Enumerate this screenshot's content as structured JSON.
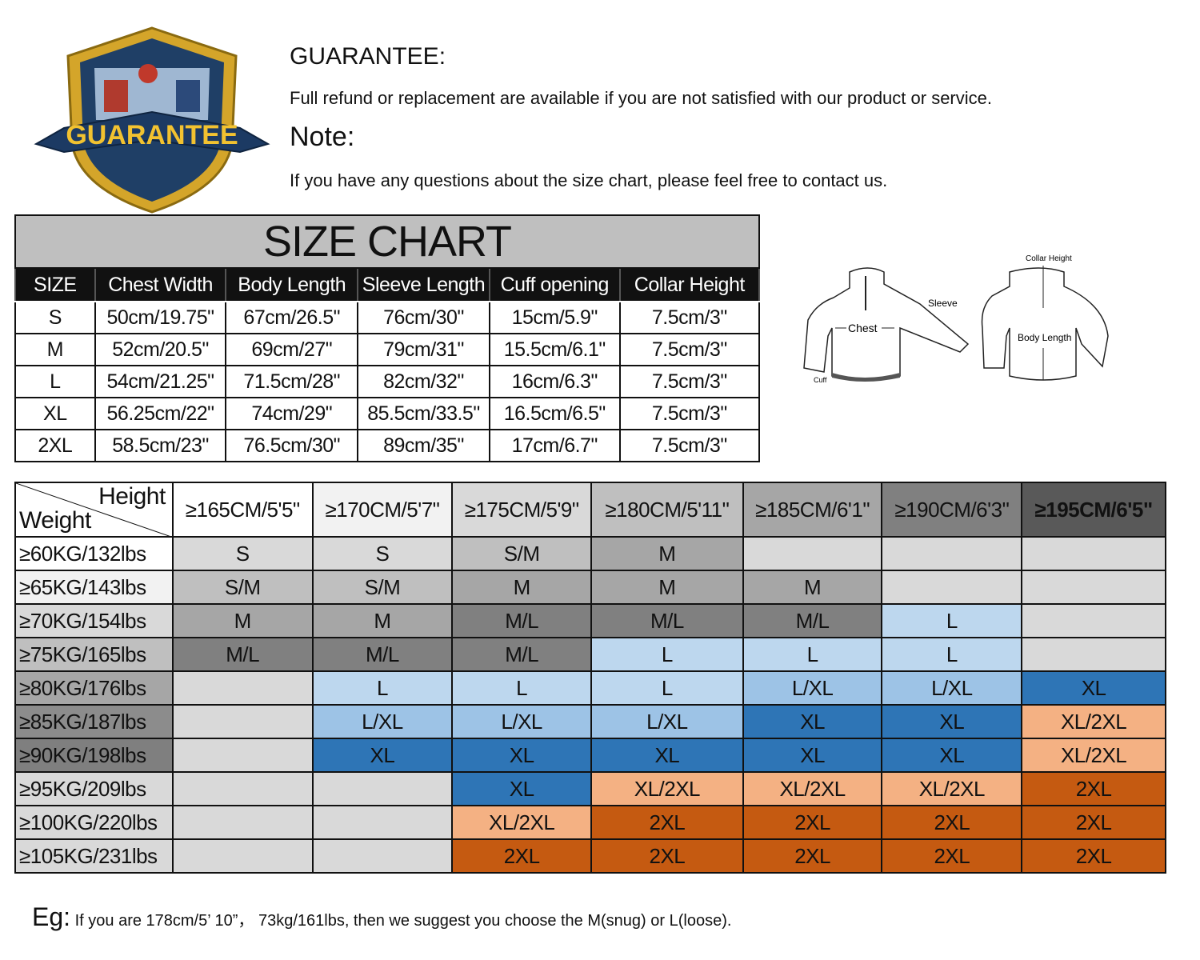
{
  "logo": {
    "text": "GUARANTEE"
  },
  "guarantee": {
    "title": "GUARANTEE:",
    "text": "Full refund or replacement are available if you are not satisfied with our product or service."
  },
  "note": {
    "title": "Note:",
    "text": "If you have any questions about the size chart, please feel free to contact us."
  },
  "size_chart": {
    "title": "SIZE CHART",
    "headers": [
      "SIZE",
      "Chest Width",
      "Body Length",
      "Sleeve Length",
      "Cuff opening",
      "Collar Height"
    ],
    "rows": [
      [
        "S",
        "50cm/19.75\"",
        "67cm/26.5\"",
        "76cm/30\"",
        "15cm/5.9\"",
        "7.5cm/3\""
      ],
      [
        "M",
        "52cm/20.5\"",
        "69cm/27\"",
        "79cm/31\"",
        "15.5cm/6.1\"",
        "7.5cm/3\""
      ],
      [
        "L",
        "54cm/21.25\"",
        "71.5cm/28\"",
        "82cm/32\"",
        "16cm/6.3\"",
        "7.5cm/3\""
      ],
      [
        "XL",
        "56.25cm/22\"",
        "74cm/29\"",
        "85.5cm/33.5\"",
        "16.5cm/6.5\"",
        "7.5cm/3\""
      ],
      [
        "2XL",
        "58.5cm/23\"",
        "76.5cm/30\"",
        "89cm/35\"",
        "17cm/6.7\"",
        "7.5cm/3\""
      ]
    ]
  },
  "diagram": {
    "chest": "Chest",
    "sleeve": "Sleeve",
    "cuff": "Cuff",
    "collar": "Collar Height",
    "body": "Body Length"
  },
  "fit_chart": {
    "corner_height": "Height",
    "corner_weight": "Weight",
    "heights": [
      "≥165CM/5'5\"",
      "≥170CM/5'7\"",
      "≥175CM/5'9\"",
      "≥180CM/5'11\"",
      "≥185CM/6'1\"",
      "≥190CM/6'3\"",
      "≥195CM/6'5\""
    ],
    "height_colors": [
      "#ffffff",
      "#f2f2f2",
      "#d9d9d9",
      "#bfbfbf",
      "#a6a6a6",
      "#808080",
      "#595959"
    ],
    "weights": [
      "≥60KG/132lbs",
      "≥65KG/143lbs",
      "≥70KG/154lbs",
      "≥75KG/165lbs",
      "≥80KG/176lbs",
      "≥85KG/187lbs",
      "≥90KG/198lbs",
      "≥95KG/209lbs",
      "≥100KG/220lbs",
      "≥105KG/231lbs"
    ],
    "weight_colors": [
      "#ffffff",
      "#f2f2f2",
      "#d9d9d9",
      "#bfbfbf",
      "#a6a6a6",
      "#8c8c8c",
      "#7f7f7f",
      "#d9d9d9",
      "#d9d9d9",
      "#d9d9d9"
    ],
    "size_colors": {
      "S": "#d9d9d9",
      "S/M": "#bfbfbf",
      "M": "#a6a6a6",
      "M/L": "#808080",
      "L": "#bdd7ee",
      "L/XL": "#9dc3e6",
      "XL": "#2e75b6",
      "XL/2XL": "#f4b183",
      "2XL": "#c55a11",
      "": "#d9d9d9"
    },
    "grid": [
      [
        "S",
        "S",
        "S/M",
        "M",
        "",
        "",
        ""
      ],
      [
        "S/M",
        "S/M",
        "M",
        "M",
        "M",
        "",
        ""
      ],
      [
        "M",
        "M",
        "M/L",
        "M/L",
        "M/L",
        "L",
        ""
      ],
      [
        "M/L",
        "M/L",
        "M/L",
        "L",
        "L",
        "L",
        ""
      ],
      [
        "",
        "L",
        "L",
        "L",
        "L/XL",
        "L/XL",
        "XL"
      ],
      [
        "",
        "L/XL",
        "L/XL",
        "L/XL",
        "XL",
        "XL",
        "XL/2XL"
      ],
      [
        "",
        "XL",
        "XL",
        "XL",
        "XL",
        "XL",
        "XL/2XL"
      ],
      [
        "",
        "",
        "XL",
        "XL/2XL",
        "XL/2XL",
        "XL/2XL",
        "2XL"
      ],
      [
        "",
        "",
        "XL/2XL",
        "2XL",
        "2XL",
        "2XL",
        "2XL"
      ],
      [
        "",
        "",
        "2XL",
        "2XL",
        "2XL",
        "2XL",
        "2XL"
      ]
    ]
  },
  "example": {
    "label": "Eg:",
    "text": "If you are 178cm/5’ 10”， 73kg/161lbs,  then we  suggest you choose the M(snug) or L(loose)."
  }
}
